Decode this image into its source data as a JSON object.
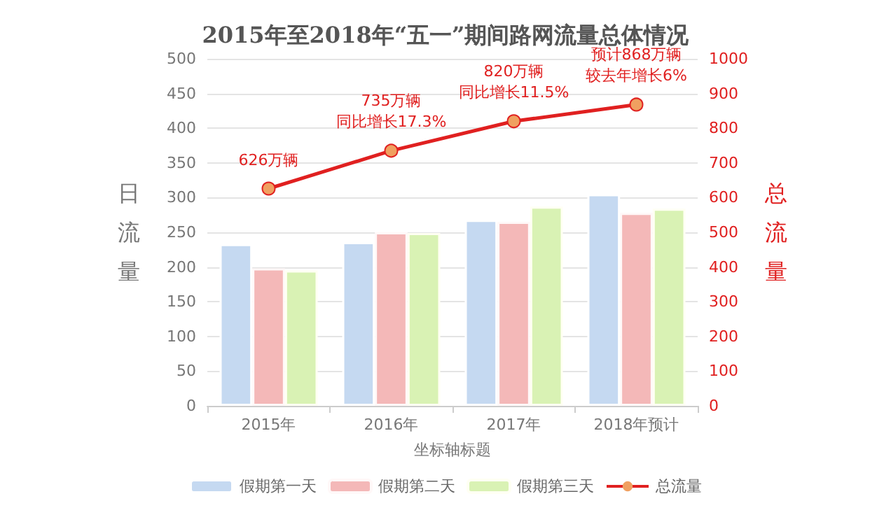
{
  "chart_data": {
    "type": "bar",
    "title": "2015年至2018年“五一”期间路网流量总体情况",
    "xlabel": "坐标轴标题",
    "ylabel": "日流量",
    "y2label": "总流量",
    "categories": [
      "2015年",
      "2016年",
      "2017年",
      "2018年预计"
    ],
    "series": [
      {
        "name": "假期第一天",
        "color": "#c5d9f1",
        "values": [
          233,
          236,
          268,
          305
        ]
      },
      {
        "name": "假期第二天",
        "color": "#f4b8b8",
        "values": [
          198,
          250,
          265,
          278
        ]
      },
      {
        "name": "假期第三天",
        "color": "#d9f2b4",
        "values": [
          195,
          249,
          287,
          284
        ]
      },
      {
        "name": "总流量",
        "type": "line",
        "axis": "y2",
        "color": "#e02020",
        "marker": "circle",
        "values": [
          626,
          735,
          820,
          868
        ],
        "value_labels": [
          "626万辆",
          "735万辆",
          "820万辆",
          "预计868万辆"
        ]
      }
    ],
    "annotations": [
      "同比增长17.3%",
      "同比增长11.5%",
      "较去年增长6%"
    ],
    "ylim": [
      0,
      500
    ],
    "yticks": [
      0,
      50,
      100,
      150,
      200,
      250,
      300,
      350,
      400,
      450,
      500
    ],
    "y2lim": [
      0,
      1000
    ],
    "y2ticks": [
      0,
      100,
      200,
      300,
      400,
      500,
      600,
      700,
      800,
      900,
      1000
    ],
    "grid": "y",
    "legend": "bottom"
  }
}
